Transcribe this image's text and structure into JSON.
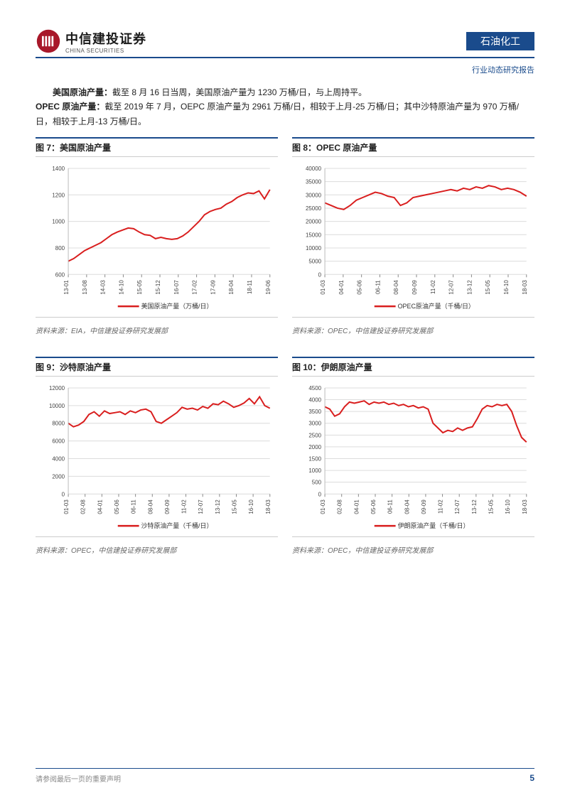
{
  "header": {
    "company_cn": "中信建投证券",
    "company_en": "CHINA SECURITIES",
    "sector": "石油化工",
    "report_type": "行业动态研究报告"
  },
  "paragraphs": {
    "p1_strong": "美国原油产量：",
    "p1_rest": "截至 8 月 16 日当周，美国原油产量为 1230 万桶/日，与上周持平。",
    "p2_strong": "OPEC 原油产量：",
    "p2_rest": "截至 2019 年 7 月，OEPC 原油产量为 2961 万桶/日，相较于上月-25 万桶/日；其中沙特原油产量为 970 万桶/日，相较于上月-13 万桶/日。"
  },
  "charts": {
    "c7": {
      "title": "图 7：美国原油产量",
      "legend": "美国原油产量（万桶/日）",
      "source": "资料来源：EIA，中信建投证券研究发展部",
      "type": "line",
      "line_color": "#d91e1e",
      "grid_color": "#dcdcdc",
      "bg_color": "#ffffff",
      "axis_fontsize": 8,
      "legend_fontsize": 9,
      "y_ticks": [
        600,
        800,
        1000,
        1200,
        1400
      ],
      "x_labels": [
        "13-01",
        "13-08",
        "14-03",
        "14-10",
        "15-05",
        "15-12",
        "16-07",
        "17-02",
        "17-09",
        "18-04",
        "18-11",
        "19-06"
      ],
      "values": [
        700,
        720,
        750,
        780,
        800,
        820,
        840,
        870,
        900,
        920,
        935,
        950,
        945,
        920,
        900,
        895,
        870,
        880,
        870,
        865,
        870,
        890,
        920,
        960,
        1000,
        1050,
        1075,
        1090,
        1100,
        1130,
        1150,
        1180,
        1200,
        1215,
        1210,
        1230,
        1170,
        1240
      ]
    },
    "c8": {
      "title": "图 8：OPEC 原油产量",
      "legend": "OPEC原油产量（千桶/日）",
      "source": "资料来源：OPEC，中信建投证券研究发展部",
      "type": "line",
      "line_color": "#d91e1e",
      "grid_color": "#dcdcdc",
      "bg_color": "#ffffff",
      "axis_fontsize": 8,
      "legend_fontsize": 9,
      "y_ticks": [
        0,
        5000,
        10000,
        15000,
        20000,
        25000,
        30000,
        35000,
        40000
      ],
      "x_labels": [
        "01-03",
        "04-01",
        "05-06",
        "06-11",
        "08-04",
        "09-09",
        "11-02",
        "12-07",
        "13-12",
        "15-05",
        "16-10",
        "18-03"
      ],
      "values": [
        27000,
        26000,
        25000,
        24500,
        26000,
        28000,
        29000,
        30000,
        31000,
        30500,
        29500,
        29000,
        26000,
        27000,
        29000,
        29500,
        30000,
        30500,
        31000,
        31500,
        32000,
        31500,
        32500,
        32000,
        33000,
        32500,
        33500,
        33000,
        32000,
        32500,
        32000,
        31000,
        29500
      ]
    },
    "c9": {
      "title": "图 9：沙特原油产量",
      "legend": "沙特原油产量（千桶/日）",
      "source": "资料来源：OPEC，中信建投证券研究发展部",
      "type": "line",
      "line_color": "#d91e1e",
      "grid_color": "#dcdcdc",
      "bg_color": "#ffffff",
      "axis_fontsize": 8,
      "legend_fontsize": 9,
      "y_ticks": [
        0,
        2000,
        4000,
        6000,
        8000,
        10000,
        12000
      ],
      "x_labels": [
        "01-03",
        "02-08",
        "04-01",
        "05-06",
        "06-11",
        "08-04",
        "09-09",
        "11-02",
        "12-07",
        "13-12",
        "15-05",
        "16-10",
        "18-03"
      ],
      "values": [
        8000,
        7600,
        7800,
        8200,
        9000,
        9300,
        8800,
        9400,
        9100,
        9200,
        9300,
        9000,
        9400,
        9200,
        9500,
        9600,
        9300,
        8200,
        8000,
        8400,
        8800,
        9200,
        9800,
        9600,
        9700,
        9500,
        9900,
        9700,
        10200,
        10100,
        10500,
        10200,
        9800,
        10000,
        10300,
        10800,
        10200,
        11000,
        10000,
        9700
      ]
    },
    "c10": {
      "title": "图 10：伊朗原油产量",
      "legend": "伊朗原油产量（千桶/日）",
      "source": "资料来源：OPEC，中信建投证券研究发展部",
      "type": "line",
      "line_color": "#d91e1e",
      "grid_color": "#dcdcdc",
      "bg_color": "#ffffff",
      "axis_fontsize": 8,
      "legend_fontsize": 9,
      "y_ticks": [
        0,
        500,
        1000,
        1500,
        2000,
        2500,
        3000,
        3500,
        4000,
        4500
      ],
      "x_labels": [
        "01-03",
        "02-08",
        "04-01",
        "05-06",
        "06-11",
        "08-04",
        "09-09",
        "11-02",
        "12-07",
        "13-12",
        "15-05",
        "16-10",
        "18-03"
      ],
      "values": [
        3700,
        3600,
        3300,
        3400,
        3700,
        3900,
        3850,
        3900,
        3950,
        3800,
        3900,
        3850,
        3900,
        3800,
        3850,
        3750,
        3800,
        3700,
        3750,
        3650,
        3700,
        3600,
        3000,
        2800,
        2600,
        2700,
        2650,
        2800,
        2700,
        2800,
        2850,
        3200,
        3600,
        3750,
        3700,
        3800,
        3750,
        3800,
        3500,
        2900,
        2400,
        2200
      ]
    }
  },
  "footer": {
    "disclaimer": "请参阅最后一页的重要声明",
    "page": "5"
  }
}
